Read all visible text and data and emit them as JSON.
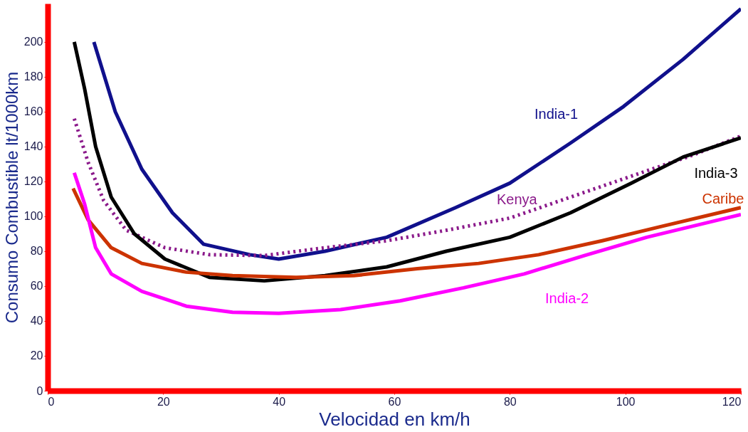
{
  "chart_data": {
    "type": "line",
    "xlabel": "Velocidad en km/h",
    "ylabel": "Consumo Combustible lt/1000km",
    "xlim": [
      0,
      120
    ],
    "ylim": [
      0,
      222
    ],
    "xticks": [
      0,
      20,
      40,
      60,
      80,
      100,
      120
    ],
    "yticks": [
      0,
      20,
      40,
      60,
      80,
      100,
      120,
      140,
      160,
      180,
      200
    ],
    "grid": false,
    "marker": "none",
    "series": [
      {
        "name": "India-1",
        "color": "#10108c",
        "line_style": "solid",
        "x": [
          8,
          11.7,
          16.3,
          21.6,
          27,
          35,
          40,
          48,
          58.7,
          70.6,
          80,
          90.5,
          99.7,
          110,
          120
        ],
        "values": [
          200,
          160,
          127,
          102,
          84,
          78,
          75.5,
          80,
          88,
          105,
          119,
          142,
          163,
          190,
          219
        ]
      },
      {
        "name": "Kenya",
        "color": "#8b1a8b",
        "line_style": "dotted",
        "x": [
          4.6,
          7,
          9.7,
          13.6,
          20.3,
          28,
          37.5,
          48,
          58.7,
          69,
          80,
          90.5,
          101,
          111.6,
          120
        ],
        "values": [
          156,
          131,
          109,
          92,
          82,
          78,
          77.5,
          82,
          86,
          92,
          99,
          111,
          123,
          135,
          146
        ]
      },
      {
        "name": "India-3",
        "color": "#000000",
        "line_style": "solid",
        "x": [
          4.6,
          6.4,
          8.3,
          11,
          15,
          20.3,
          28,
          37.5,
          48,
          58.7,
          69,
          80,
          90.5,
          101,
          110,
          120
        ],
        "values": [
          200,
          173,
          140,
          111,
          90,
          75.5,
          65,
          63,
          66,
          71,
          80,
          88,
          102,
          119,
          134,
          145
        ]
      },
      {
        "name": "Caribe",
        "color": "#cc3300",
        "line_style": "solid",
        "x": [
          4.4,
          7,
          11,
          16.3,
          24,
          32,
          43,
          53,
          64,
          74.6,
          85,
          96,
          106,
          120
        ],
        "values": [
          116,
          98,
          82,
          73,
          68,
          66,
          65,
          66,
          70,
          73,
          78,
          86,
          94,
          105
        ]
      },
      {
        "name": "India-2",
        "color": "#ff00ff",
        "line_style": "solid",
        "x": [
          4.6,
          6.4,
          8.3,
          11,
          16.3,
          24,
          32,
          40,
          50.7,
          61,
          72,
          82.5,
          93,
          103.7,
          120
        ],
        "values": [
          125,
          107,
          82,
          67,
          57,
          48.5,
          45,
          44.4,
          46.5,
          51.5,
          59,
          67,
          77.6,
          88,
          101
        ]
      }
    ]
  }
}
